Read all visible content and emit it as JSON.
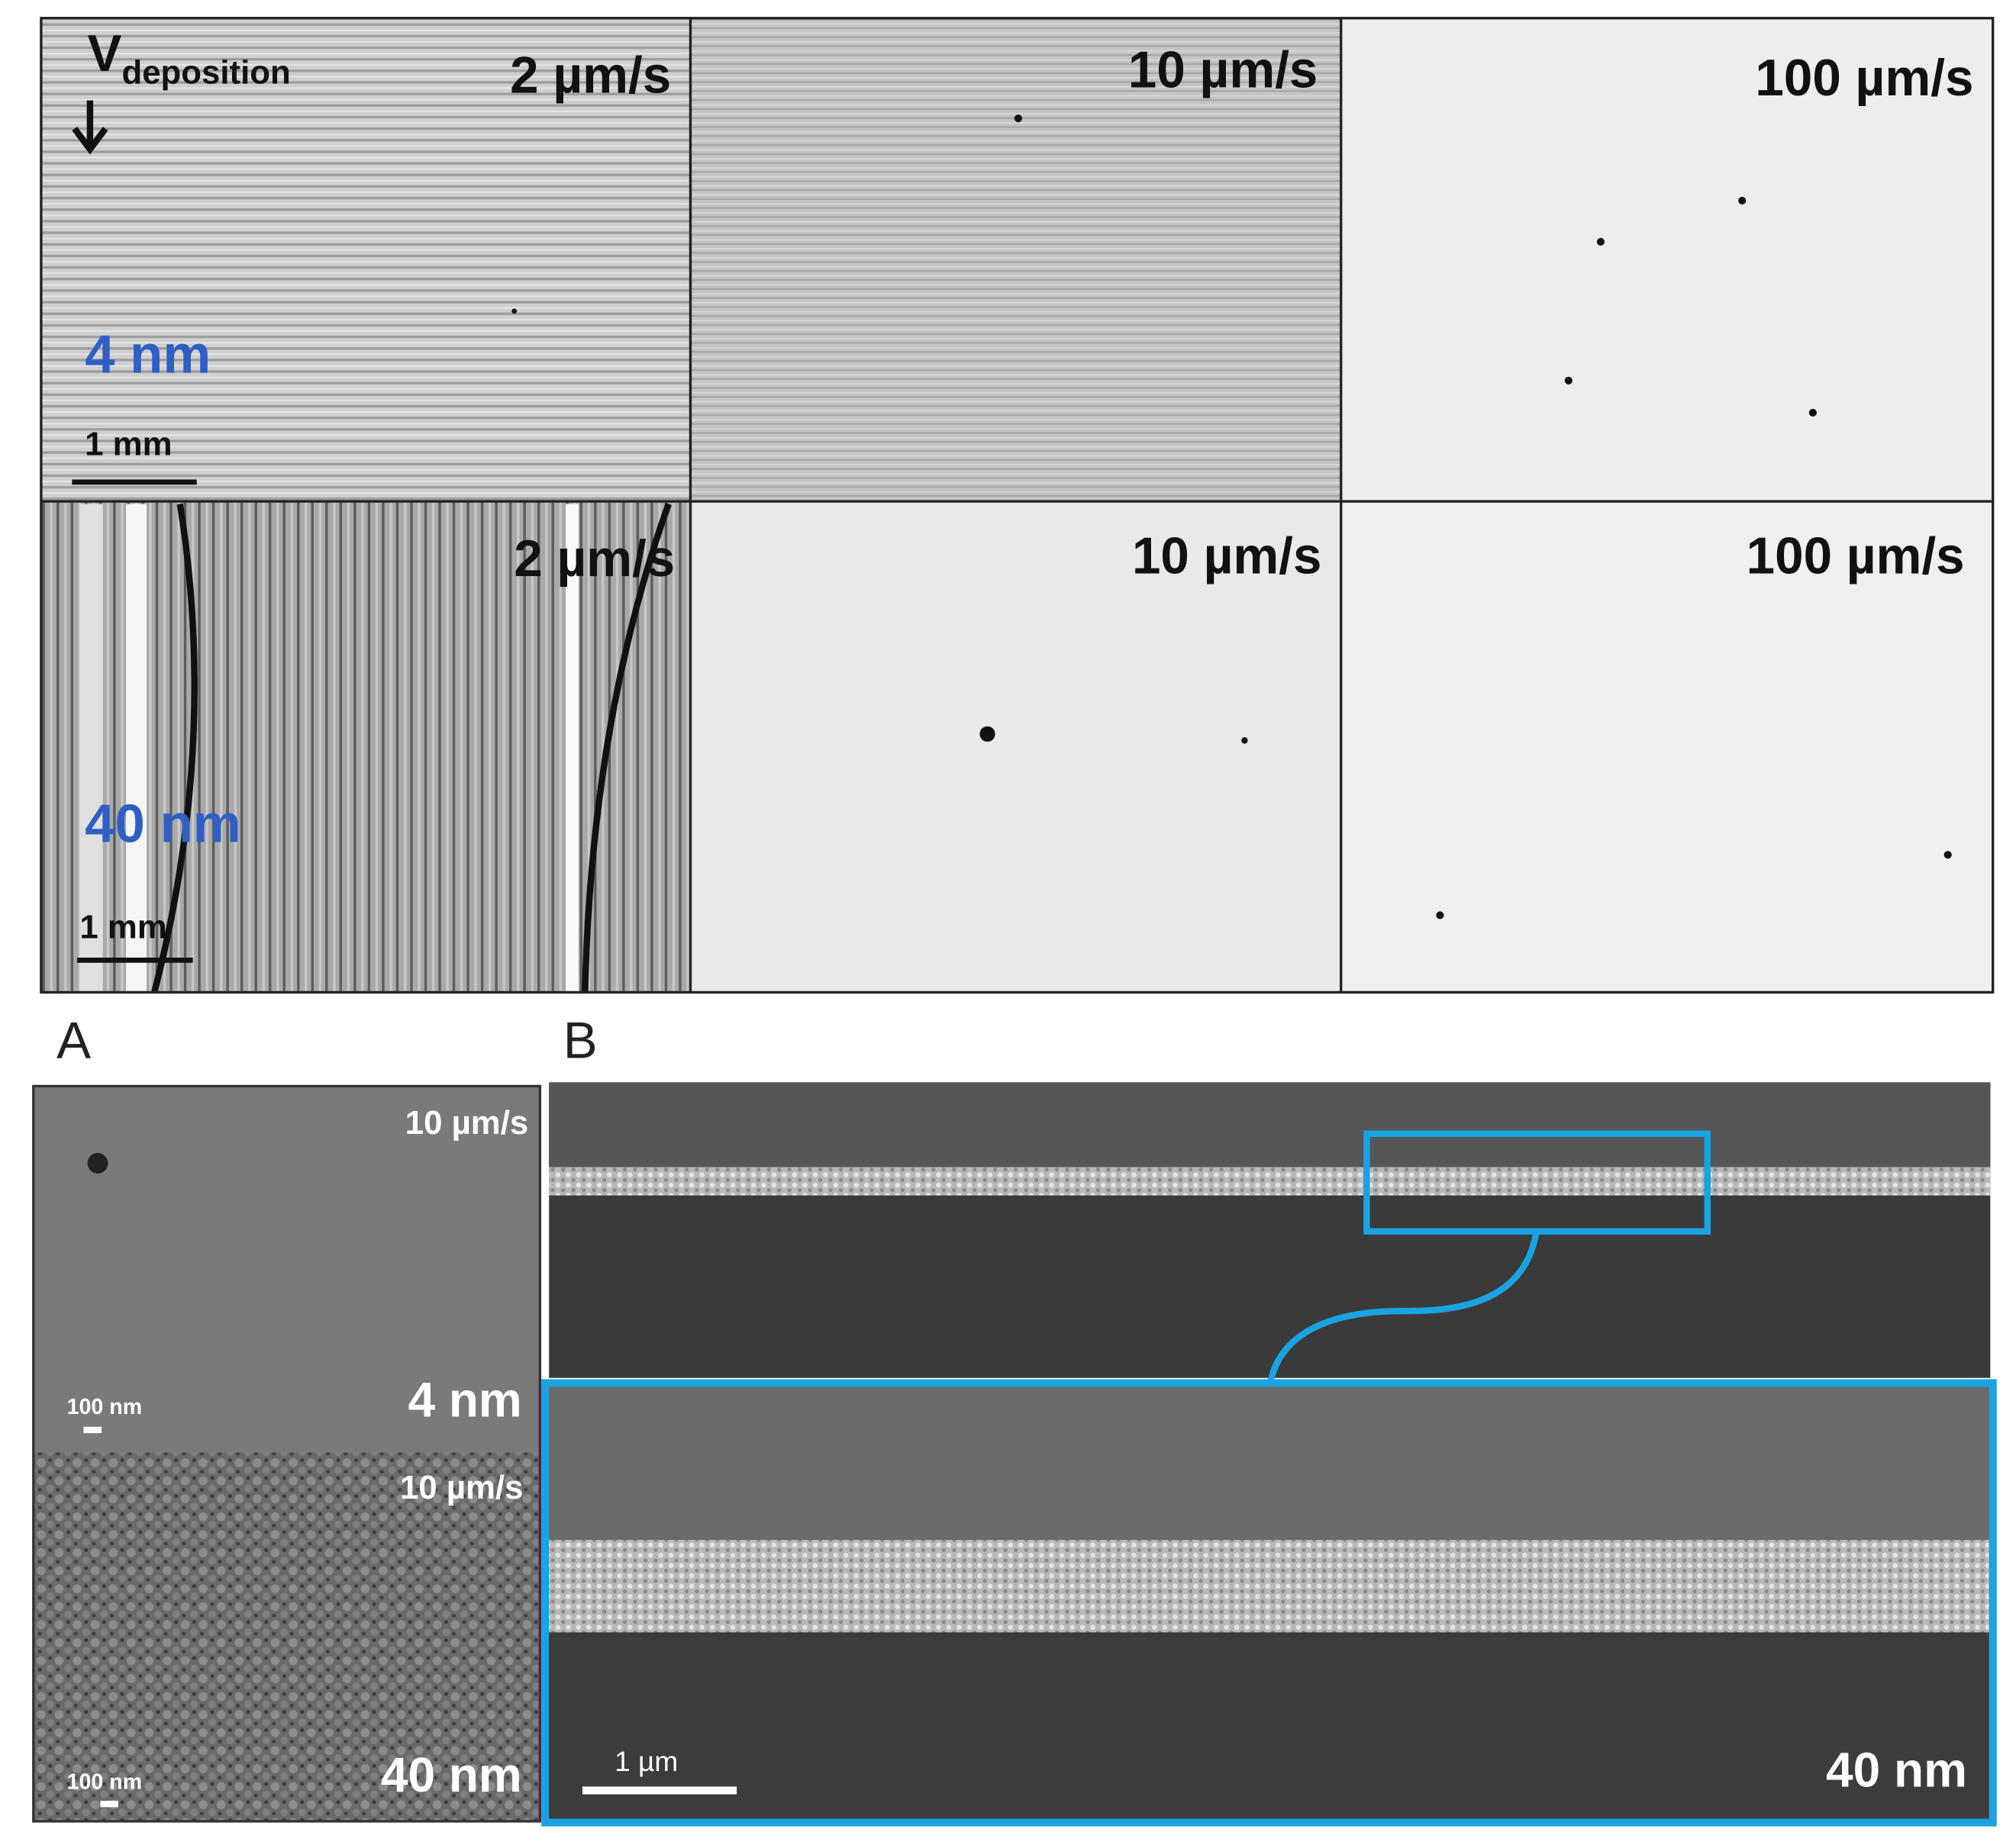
{
  "top_grid": {
    "header": {
      "velocity_symbol": "V",
      "velocity_subscript": "deposition"
    },
    "rows": [
      {
        "thickness": "4 nm",
        "scale_bar": "1 mm",
        "panels": [
          "2 µm/s",
          "10 µm/s",
          "100 µm/s"
        ]
      },
      {
        "thickness": "40 nm",
        "scale_bar": "1 mm",
        "panels": [
          "2  µm/s",
          "10 µm/s",
          "100 µm/s"
        ]
      }
    ]
  },
  "panel_a": {
    "label": "A",
    "images": [
      {
        "speed": "10  µm/s",
        "thickness": "4 nm",
        "scale_bar": "100 nm"
      },
      {
        "speed": "10 µm/s",
        "thickness": "40 nm",
        "scale_bar": "100 nm"
      }
    ]
  },
  "panel_b": {
    "label": "B",
    "thickness": "40 nm",
    "scale_bar": "1 µm"
  }
}
